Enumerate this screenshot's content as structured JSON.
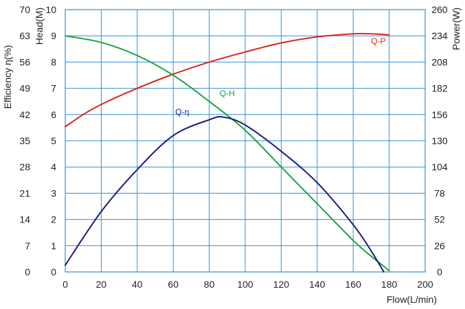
{
  "chart_data": {
    "type": "line",
    "title": "",
    "xlabel": "Flow(L/min)",
    "xlim": [
      0,
      200
    ],
    "x_ticks": [
      "0",
      "20",
      "40",
      "60",
      "80",
      "100",
      "120",
      "140",
      "160",
      "180",
      "200"
    ],
    "axes": {
      "efficiency": {
        "label": "Efficiency η(%)",
        "lim": [
          0,
          70
        ],
        "ticks": [
          "0",
          "7",
          "14",
          "21",
          "28",
          "35",
          "42",
          "49",
          "56",
          "63",
          "70"
        ]
      },
      "head": {
        "label": "Head(M)",
        "lim": [
          0,
          10
        ],
        "ticks": [
          "0",
          "1",
          "2",
          "3",
          "4",
          "5",
          "6",
          "7",
          "8",
          "9",
          "10"
        ]
      },
      "power": {
        "label": "Power(W)",
        "lim": [
          0,
          260
        ],
        "ticks": [
          "0",
          "26",
          "52",
          "78",
          "104",
          "130",
          "156",
          "182",
          "208",
          "234",
          "260"
        ]
      }
    },
    "grid": true,
    "series": [
      {
        "name": "Q-P",
        "axis": "power",
        "color": "#d9261c",
        "x": [
          0,
          10,
          20,
          40,
          60,
          80,
          100,
          120,
          140,
          160,
          170,
          180
        ],
        "y": [
          144,
          156,
          166,
          182,
          196,
          208,
          218,
          227,
          233,
          236,
          236,
          235
        ]
      },
      {
        "name": "Q-H",
        "axis": "head",
        "color": "#1aa33c",
        "x": [
          0,
          20,
          40,
          60,
          80,
          100,
          120,
          140,
          160,
          170,
          180
        ],
        "y": [
          9.0,
          8.75,
          8.25,
          7.5,
          6.5,
          5.4,
          4.0,
          2.6,
          1.2,
          0.6,
          0.05
        ]
      },
      {
        "name": "Q-η",
        "axis": "efficiency",
        "color": "#1a1a80",
        "x": [
          0,
          20,
          40,
          60,
          80,
          88,
          100,
          120,
          140,
          160,
          170,
          177
        ],
        "y": [
          1.8,
          16.1,
          27.3,
          36.4,
          40.6,
          41.3,
          39.2,
          32.2,
          23.8,
          12.6,
          5.6,
          0
        ]
      }
    ],
    "series_labels": [
      "Q-P",
      "Q-H",
      "Q-η"
    ]
  }
}
